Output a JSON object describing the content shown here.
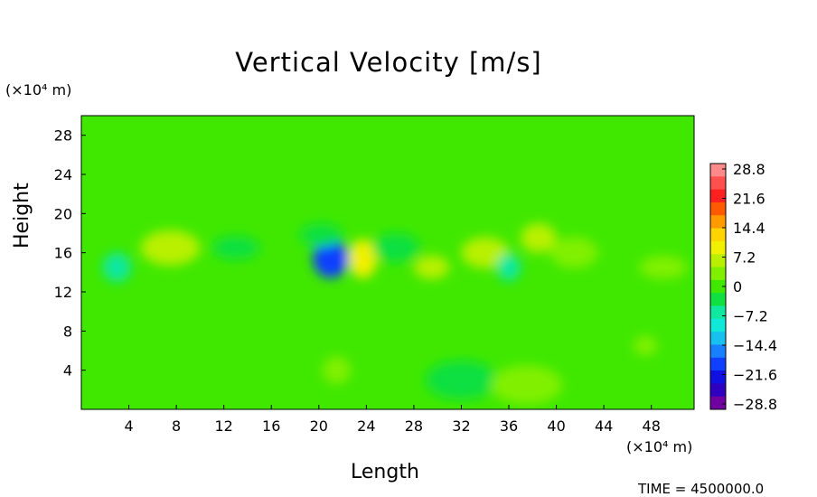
{
  "chart_data": {
    "type": "heatmap",
    "title": "Vertical Velocity [m/s]",
    "xlabel": "Length",
    "ylabel": "Height",
    "x_unit": "(×10⁴ m)",
    "y_unit": "(×10⁴ m)",
    "xticks": [
      4,
      8,
      12,
      16,
      20,
      24,
      28,
      32,
      36,
      40,
      44,
      48
    ],
    "yticks": [
      4,
      8,
      12,
      16,
      20,
      24,
      28
    ],
    "xlim": [
      0,
      51.6
    ],
    "ylim": [
      0,
      30
    ],
    "colorbar": {
      "ticks": [
        "28.8",
        "21.6",
        "14.4",
        "7.2",
        "0",
        "−7.2",
        "−14.4",
        "−21.6",
        "−28.8"
      ],
      "values": [
        28.8,
        21.6,
        14.4,
        7.2,
        0,
        -7.2,
        -14.4,
        -21.6,
        -28.8
      ],
      "colors": [
        "#ff8a8a",
        "#ff5050",
        "#ff2020",
        "#ff5a00",
        "#ff9a00",
        "#ffd400",
        "#f0f000",
        "#b8f000",
        "#80f000",
        "#40e800",
        "#10e040",
        "#10e8a0",
        "#10e8d8",
        "#18c0f0",
        "#1880ff",
        "#1040ff",
        "#1010e0",
        "#3000c0",
        "#7000a0"
      ]
    },
    "features": [
      {
        "x": 21.0,
        "y": 15.4,
        "value": -20,
        "rx": 1.5,
        "ry": 2.0
      },
      {
        "x": 23.7,
        "y": 15.4,
        "value": 11,
        "rx": 1.2,
        "ry": 2.0
      },
      {
        "x": 7.5,
        "y": 16.5,
        "value": 6,
        "rx": 2.5,
        "ry": 1.8
      },
      {
        "x": 3.0,
        "y": 14.5,
        "value": -6,
        "rx": 1.2,
        "ry": 1.5
      },
      {
        "x": 20.2,
        "y": 17.8,
        "value": -4,
        "rx": 1.8,
        "ry": 1.2
      },
      {
        "x": 26.5,
        "y": 16.5,
        "value": -4,
        "rx": 2.0,
        "ry": 1.5
      },
      {
        "x": 29.5,
        "y": 14.5,
        "value": 7,
        "rx": 1.5,
        "ry": 1.2
      },
      {
        "x": 34.0,
        "y": 16.0,
        "value": 6,
        "rx": 2.0,
        "ry": 1.6
      },
      {
        "x": 36.0,
        "y": 14.5,
        "value": -6,
        "rx": 1.0,
        "ry": 1.4
      },
      {
        "x": 38.5,
        "y": 17.5,
        "value": 6,
        "rx": 1.5,
        "ry": 1.5
      },
      {
        "x": 41.5,
        "y": 16.0,
        "value": 4,
        "rx": 2.0,
        "ry": 1.6
      },
      {
        "x": 13.0,
        "y": 16.5,
        "value": -3,
        "rx": 2.0,
        "ry": 1.2
      },
      {
        "x": 49.0,
        "y": 14.5,
        "value": 4,
        "rx": 2.0,
        "ry": 1.2
      },
      {
        "x": 32.0,
        "y": 3.0,
        "value": -3,
        "rx": 3.0,
        "ry": 2.0
      },
      {
        "x": 37.5,
        "y": 2.5,
        "value": 4,
        "rx": 3.0,
        "ry": 2.0
      },
      {
        "x": 21.5,
        "y": 4.0,
        "value": 3,
        "rx": 1.2,
        "ry": 1.4
      },
      {
        "x": 47.5,
        "y": 6.5,
        "value": 3,
        "rx": 1.0,
        "ry": 1.0
      }
    ]
  },
  "timestamp_text": "TIME = 4500000.0"
}
